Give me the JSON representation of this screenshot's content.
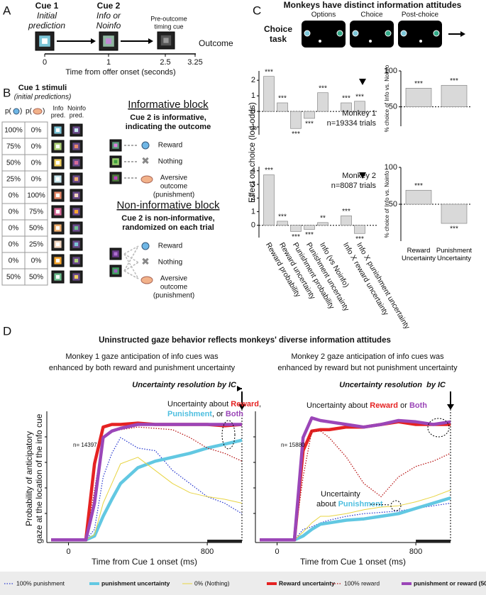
{
  "panel_a": {
    "letter": "A",
    "cue1": "Cue 1",
    "cue1_sub": [
      "Initial",
      "prediction"
    ],
    "cue2": "Cue 2",
    "cue2_sub": [
      "Info or",
      "Noinfo"
    ],
    "timing_cue": [
      "Pre-outcome",
      "timing cue"
    ],
    "outcome": "Outcome",
    "ticks": [
      "0",
      "1",
      "2.5",
      "3.25"
    ],
    "axis_label": "Time from offer onset (seconds)"
  },
  "panel_b": {
    "letter": "B",
    "title": "Cue 1 stimuli",
    "subtitle": "(initial predictions)",
    "p_open": [
      "p(",
      "p("
    ],
    "p_close": [
      ")",
      ")"
    ],
    "col_info": [
      "Info",
      "pred."
    ],
    "col_noinfo": [
      "Noinfo",
      "pred."
    ],
    "rows": [
      [
        "100%",
        "0%"
      ],
      [
        "75%",
        "0%"
      ],
      [
        "50%",
        "0%"
      ],
      [
        "25%",
        "0%"
      ],
      [
        "0%",
        "100%"
      ],
      [
        "0%",
        "75%"
      ],
      [
        "0%",
        "50%"
      ],
      [
        "0%",
        "25%"
      ],
      [
        "0%",
        "0%"
      ],
      [
        "50%",
        "50%"
      ]
    ],
    "informative": {
      "title": "Informative block",
      "desc": [
        "Cue 2 is informative,",
        "indicating the outcome"
      ],
      "outcomes": [
        "Reward",
        "Nothing",
        "Aversive",
        "outcome",
        "(punishment)"
      ]
    },
    "noninformative": {
      "title": "Non-informative block",
      "desc": [
        "Cue 2 is non-informative,",
        "randomized on each trial"
      ],
      "outcomes": [
        "Reward",
        "Nothing",
        "Aversive",
        "outcome",
        "(punishment)"
      ]
    }
  },
  "panel_c": {
    "letter": "C",
    "title": "Monkeys have distinct information attitudes",
    "task_label": [
      "Choice",
      "task"
    ],
    "screens": [
      "Options",
      "Choice",
      "Post-choice"
    ],
    "y_label": "Effect on choice (log odds)"
  },
  "panel_d": {
    "letter": "D",
    "title": "Uninstructed gaze behavior reflects monkeys' diverse information attitudes",
    "y_label": [
      "Probability of anticipatory",
      "gaze at the location of the info cue"
    ],
    "left": {
      "subtitle": [
        "Monkey 1 gaze anticipation of info cues was",
        "enhanced by both reward and punishment uncertainty"
      ],
      "resolution": "Uncertainty resolution by IC",
      "n": "n= 14397",
      "note": [
        "Uncertainty about ",
        "Reward",
        ",",
        "Punishment",
        ", or ",
        "Both"
      ]
    },
    "right": {
      "subtitle": [
        "Monkey 2 gaze anticipation of info cues was",
        "enhanced by reward but not punishment uncertainty"
      ],
      "resolution": "Uncertainty resolution  by IC",
      "n": "n= 15880",
      "note": [
        "Uncertainty about ",
        "Reward",
        " or ",
        "Both"
      ],
      "note2": [
        "Uncertainty",
        "about ",
        "Punishment"
      ]
    }
  },
  "chart_data": [
    {
      "type": "bar",
      "values": [
        2.25,
        0.55,
        -1.1,
        -0.45,
        1.2,
        0.55,
        0.65
      ],
      "significance": [
        "***",
        "***",
        "***",
        "***",
        "***",
        "***",
        "***"
      ],
      "ylim": [
        -1.5,
        2.6
      ],
      "yticks": [
        -1,
        0,
        1,
        2
      ],
      "baseline": 0,
      "color": "#d9d9d9",
      "annotation": [
        "Monkey 1",
        "n=19334 trials"
      ]
    },
    {
      "type": "bar",
      "categories": [
        "Reward probability",
        "Reward uncertainty",
        "Punishment probability",
        "Punishment uncertainty",
        "Info (vs Noinfo)",
        "Info X reward uncertainty",
        "Info X punishment uncertainty"
      ],
      "values": [
        3.7,
        0.3,
        -0.45,
        -0.3,
        0.2,
        0.7,
        -0.6
      ],
      "significance": [
        "***",
        "***",
        "***",
        "***",
        "**",
        "***",
        "***"
      ],
      "ylim": [
        -0.9,
        4.3
      ],
      "yticks": [
        0,
        1,
        2,
        3,
        4
      ],
      "baseline": 0,
      "color": "#d9d9d9",
      "annotation": [
        "Monkey 2",
        "n=8087 trials"
      ]
    },
    {
      "type": "bar",
      "values": [
        76,
        80
      ],
      "significance": [
        "***",
        "***"
      ],
      "ylim": [
        23,
        100
      ],
      "yticks": [
        50,
        100
      ],
      "baseline": 50,
      "color": "#d9d9d9",
      "y_label": "% choice of Info vs. Noinfo"
    },
    {
      "type": "bar",
      "categories": [
        "Reward Uncertainty",
        "Punishment Uncertainty"
      ],
      "values": [
        69,
        24
      ],
      "significance": [
        "***",
        "***"
      ],
      "ylim": [
        0,
        100
      ],
      "yticks": [
        50,
        100
      ],
      "baseline": 50,
      "color": "#d9d9d9",
      "y_label": "% choice of Info vs. Noinfo"
    },
    {
      "type": "line",
      "x": [
        -100,
        100,
        150,
        200,
        250,
        300,
        400,
        500,
        600,
        700,
        800,
        900,
        1000
      ],
      "xlim": [
        -125,
        1000
      ],
      "ylim": [
        0,
        1
      ],
      "xticks": [
        0,
        800
      ],
      "x_label": "Time from Cue 1 onset (ms)",
      "series": [
        {
          "name": "100% punishment",
          "color": "#2b3bd0",
          "line_style": "dotted",
          "values": [
            0.02,
            0.02,
            0.1,
            0.5,
            0.68,
            0.8,
            0.72,
            0.7,
            0.55,
            0.45,
            0.35,
            0.3,
            0.22
          ]
        },
        {
          "name": "punishment uncertainty",
          "color": "#62c8e2",
          "line_style": "thick",
          "values": [
            0.02,
            0.02,
            0.05,
            0.2,
            0.33,
            0.45,
            0.57,
            0.62,
            0.65,
            0.68,
            0.72,
            0.75,
            0.78
          ]
        },
        {
          "name": "0% (Nothing)",
          "color": "#e8d442",
          "line_style": "thin",
          "values": [
            0.02,
            0.02,
            0.06,
            0.3,
            0.45,
            0.6,
            0.65,
            0.55,
            0.45,
            0.38,
            0.35,
            0.33,
            0.3
          ]
        },
        {
          "name": "Reward uncertainty",
          "color": "#e52222",
          "line_style": "thick",
          "values": [
            0.02,
            0.02,
            0.6,
            0.88,
            0.9,
            0.9,
            0.91,
            0.9,
            0.9,
            0.9,
            0.9,
            0.89,
            0.9
          ]
        },
        {
          "name": "100% reward",
          "color": "#b81515",
          "line_style": "dotted",
          "values": [
            0.02,
            0.02,
            0.4,
            0.8,
            0.85,
            0.86,
            0.88,
            0.87,
            0.86,
            0.8,
            0.72,
            0.68,
            0.62
          ]
        },
        {
          "name": "punishment or reward (50%)",
          "color": "#9b46b8",
          "line_style": "thick",
          "values": [
            0.02,
            0.02,
            0.3,
            0.8,
            0.85,
            0.87,
            0.9,
            0.9,
            0.9,
            0.9,
            0.9,
            0.9,
            0.9
          ]
        }
      ]
    },
    {
      "type": "line",
      "x": [
        -100,
        100,
        150,
        200,
        250,
        300,
        400,
        500,
        600,
        700,
        800,
        900,
        1000
      ],
      "xlim": [
        -125,
        1000
      ],
      "ylim": [
        0,
        1
      ],
      "xticks": [
        0,
        800
      ],
      "x_label": "Time from Cue 1 onset (ms)",
      "series": [
        {
          "color": "#2b3bd0",
          "line_style": "dotted",
          "values": [
            0.02,
            0.02,
            0.1,
            0.12,
            0.15,
            0.17,
            0.2,
            0.22,
            0.23,
            0.24,
            0.26,
            0.28,
            0.3
          ]
        },
        {
          "color": "#62c8e2",
          "line_style": "thick",
          "values": [
            0.02,
            0.02,
            0.05,
            0.1,
            0.14,
            0.15,
            0.17,
            0.18,
            0.2,
            0.22,
            0.26,
            0.3,
            0.34
          ]
        },
        {
          "color": "#e8d442",
          "line_style": "thin",
          "values": [
            0.02,
            0.02,
            0.08,
            0.15,
            0.2,
            0.2,
            0.22,
            0.25,
            0.27,
            0.28,
            0.31,
            0.35,
            0.4
          ]
        },
        {
          "color": "#e52222",
          "line_style": "thick",
          "values": [
            0.02,
            0.02,
            0.7,
            0.85,
            0.86,
            0.86,
            0.88,
            0.88,
            0.9,
            0.92,
            0.9,
            0.9,
            0.9
          ]
        },
        {
          "color": "#b81515",
          "line_style": "dotted",
          "values": [
            0.02,
            0.02,
            0.5,
            0.85,
            0.85,
            0.8,
            0.65,
            0.45,
            0.35,
            0.5,
            0.58,
            0.62,
            0.68
          ]
        },
        {
          "color": "#9b46b8",
          "line_style": "thick",
          "values": [
            0.02,
            0.02,
            0.8,
            0.95,
            0.93,
            0.92,
            0.9,
            0.88,
            0.9,
            0.93,
            0.92,
            0.9,
            0.92
          ]
        }
      ]
    }
  ]
}
